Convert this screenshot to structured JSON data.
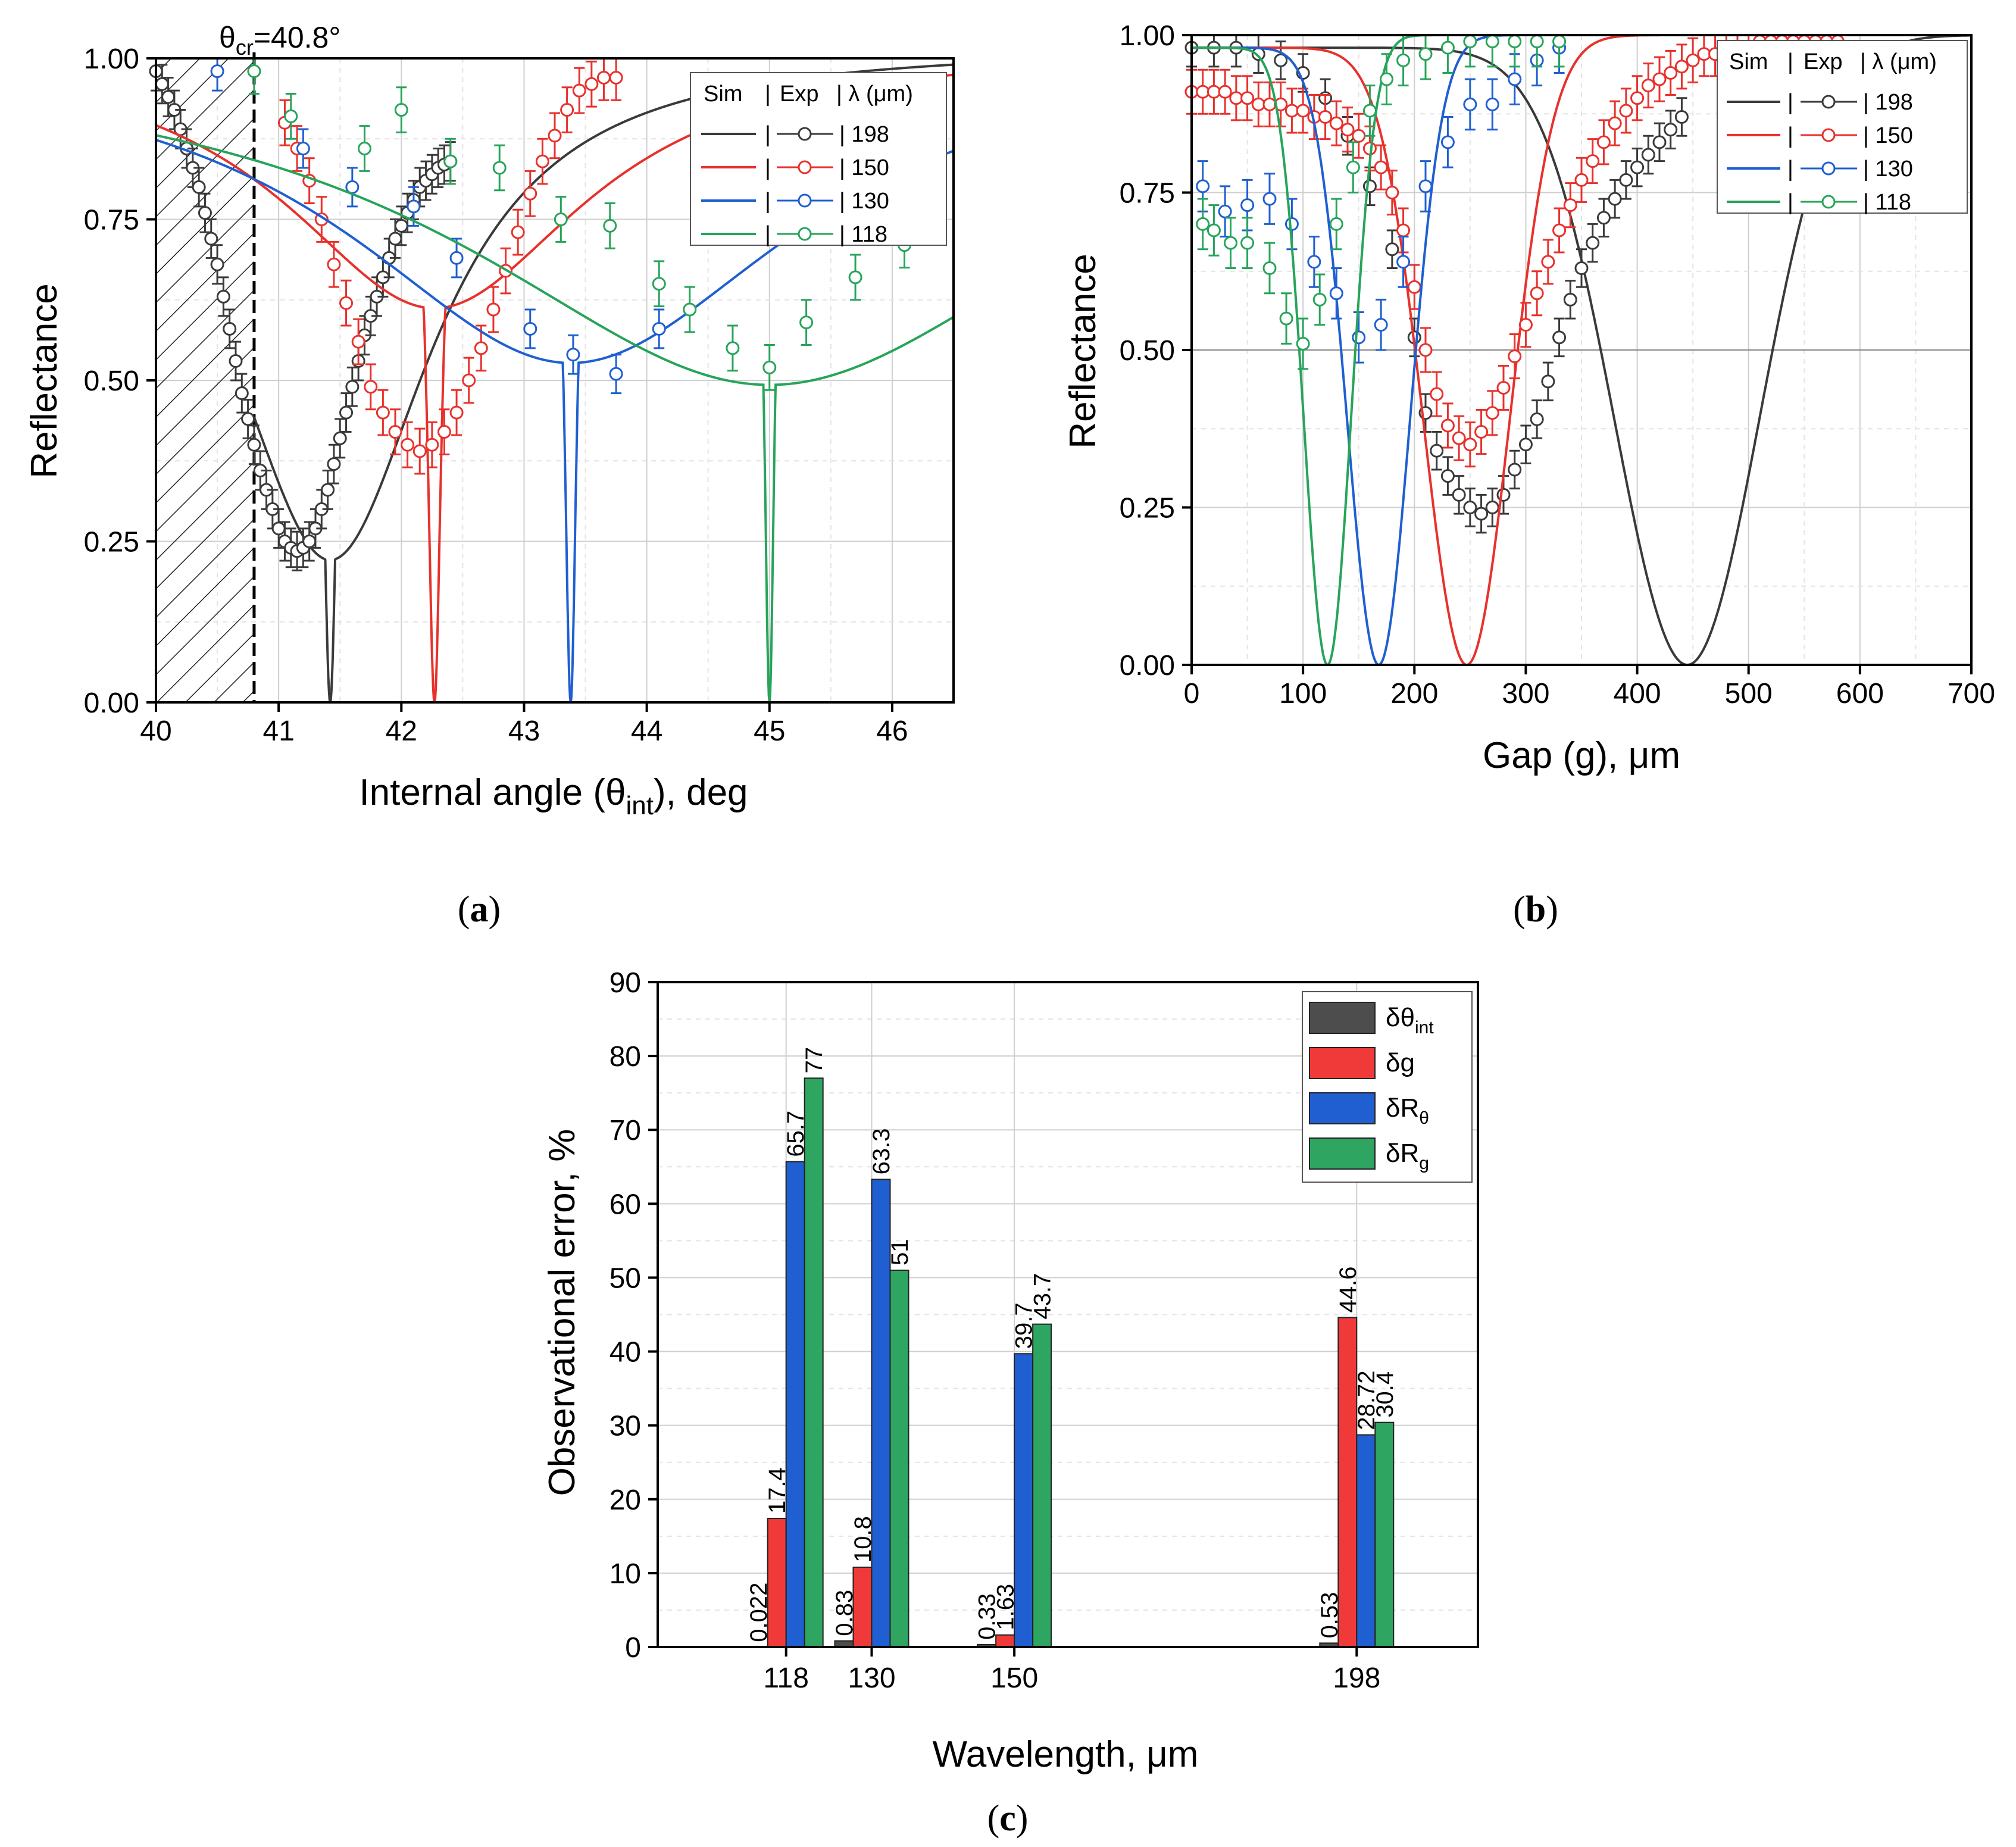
{
  "chart_data": [
    {
      "type": "line",
      "panel_label": "a",
      "xlabel": "Internal angle (θ",
      "xlabel_sub": "int",
      "xlabel_suffix": "), deg",
      "ylabel": "Reflectance",
      "xlim": [
        40,
        46.5
      ],
      "ylim": [
        0,
        1
      ],
      "xticks": [
        "40",
        "41",
        "42",
        "43",
        "44",
        "45",
        "46"
      ],
      "yticks": [
        "0.00",
        "0.25",
        "0.50",
        "0.75",
        "1.00"
      ],
      "annotation": {
        "prefix": "θ",
        "sub": "cr",
        "text": "=40.8°",
        "x": 40.8
      },
      "shaded_region": [
        40,
        40.8
      ],
      "legend": {
        "header": [
          "Sim",
          "|",
          "Exp",
          "| λ (μm)"
        ],
        "placement": "top-right"
      },
      "series": [
        {
          "name": "198",
          "label": "| 198",
          "color": "#3a3a3a",
          "sim": {
            "dip": 41.42,
            "width": 0.075,
            "tail": 0.06,
            "tailw": 1.0
          },
          "exp": {
            "x": [
              40.0,
              40.05,
              40.1,
              40.15,
              40.2,
              40.25,
              40.3,
              40.35,
              40.4,
              40.45,
              40.5,
              40.55,
              40.6,
              40.65,
              40.7,
              40.75,
              40.8,
              40.85,
              40.9,
              40.95,
              41.0,
              41.05,
              41.1,
              41.15,
              41.2,
              41.25,
              41.3,
              41.35,
              41.4,
              41.45,
              41.5,
              41.55,
              41.6,
              41.65,
              41.7,
              41.75,
              41.8,
              41.85,
              41.9,
              41.95,
              42.0,
              42.05,
              42.1,
              42.15,
              42.2,
              42.25,
              42.3,
              42.35,
              42.4
            ],
            "y": [
              0.98,
              0.96,
              0.94,
              0.92,
              0.89,
              0.86,
              0.83,
              0.8,
              0.76,
              0.72,
              0.68,
              0.63,
              0.58,
              0.53,
              0.48,
              0.44,
              0.4,
              0.36,
              0.33,
              0.3,
              0.27,
              0.25,
              0.24,
              0.235,
              0.24,
              0.25,
              0.27,
              0.3,
              0.33,
              0.37,
              0.41,
              0.45,
              0.49,
              0.53,
              0.57,
              0.6,
              0.63,
              0.66,
              0.69,
              0.72,
              0.74,
              0.76,
              0.78,
              0.8,
              0.81,
              0.82,
              0.83,
              0.835,
              0.84
            ],
            "err": 0.03
          }
        },
        {
          "name": "150",
          "label": "| 150",
          "color": "#e8312c",
          "sim": {
            "dip": 42.27,
            "width": 0.07,
            "tail": 0.52,
            "tailw": 1.5
          },
          "exp": {
            "x": [
              41.05,
              41.15,
              41.25,
              41.35,
              41.45,
              41.55,
              41.65,
              41.75,
              41.85,
              41.95,
              42.05,
              42.15,
              42.25,
              42.35,
              42.45,
              42.55,
              42.65,
              42.75,
              42.85,
              42.95,
              43.05,
              43.15,
              43.25,
              43.35,
              43.45,
              43.55,
              43.65,
              43.75
            ],
            "y": [
              0.9,
              0.86,
              0.81,
              0.75,
              0.68,
              0.62,
              0.56,
              0.49,
              0.45,
              0.42,
              0.4,
              0.39,
              0.4,
              0.42,
              0.45,
              0.5,
              0.55,
              0.61,
              0.67,
              0.73,
              0.79,
              0.84,
              0.88,
              0.92,
              0.95,
              0.96,
              0.97,
              0.97
            ],
            "err": 0.035
          }
        },
        {
          "name": "130",
          "label": "| 130",
          "color": "#1f5fd1",
          "sim": {
            "dip": 43.38,
            "width": 0.06,
            "tail": 0.42,
            "tailw": 2.2
          },
          "exp": {
            "x": [
              40.5,
              41.2,
              41.6,
              42.1,
              42.45,
              43.05,
              43.4,
              43.75,
              44.1
            ],
            "y": [
              0.98,
              0.86,
              0.8,
              0.77,
              0.69,
              0.58,
              0.54,
              0.51,
              0.58
            ],
            "err": 0.03
          }
        },
        {
          "name": "118",
          "label": "| 118",
          "color": "#27a45a",
          "sim": {
            "dip": 45.0,
            "width": 0.05,
            "tail": 0.38,
            "tailw": 3.0
          },
          "exp": {
            "x": [
              40.8,
              41.1,
              41.7,
              42.0,
              42.4,
              42.8,
              43.3,
              43.7,
              44.1,
              44.35,
              44.7,
              45.0,
              45.3,
              45.7,
              46.1
            ],
            "y": [
              0.98,
              0.91,
              0.86,
              0.92,
              0.84,
              0.83,
              0.75,
              0.74,
              0.65,
              0.61,
              0.55,
              0.52,
              0.59,
              0.66,
              0.71
            ],
            "err": 0.035
          }
        }
      ]
    },
    {
      "type": "line",
      "panel_label": "b",
      "xlabel": "Gap (g), μm",
      "ylabel": "Reflectance",
      "xlim": [
        0,
        700
      ],
      "ylim": [
        0,
        1
      ],
      "xticks": [
        "0",
        "100",
        "200",
        "300",
        "400",
        "500",
        "600",
        "700"
      ],
      "yticks": [
        "0.00",
        "0.25",
        "0.50",
        "0.75",
        "1.00"
      ],
      "legend": {
        "header": [
          "Sim",
          "|",
          "Exp",
          "| λ (μm)"
        ],
        "placement": "top-right"
      },
      "series": [
        {
          "name": "198",
          "label": "| 198",
          "color": "#3a3a3a",
          "sim": {
            "dip": 445,
            "sigma": 92,
            "y0": 0.98
          },
          "exp": {
            "x": [
              0,
              20,
              40,
              60,
              80,
              100,
              120,
              140,
              160,
              180,
              200,
              210,
              220,
              230,
              240,
              250,
              260,
              270,
              280,
              290,
              300,
              310,
              320,
              330,
              340,
              350,
              360,
              370,
              380,
              390,
              400,
              410,
              420,
              430,
              440
            ],
            "y": [
              0.98,
              0.98,
              0.98,
              0.97,
              0.96,
              0.94,
              0.9,
              0.84,
              0.76,
              0.66,
              0.52,
              0.4,
              0.34,
              0.3,
              0.27,
              0.25,
              0.24,
              0.25,
              0.27,
              0.31,
              0.35,
              0.39,
              0.45,
              0.52,
              0.58,
              0.63,
              0.67,
              0.71,
              0.74,
              0.77,
              0.79,
              0.81,
              0.83,
              0.85,
              0.87
            ],
            "err": 0.03
          }
        },
        {
          "name": "150",
          "label": "| 150",
          "color": "#e8312c",
          "sim": {
            "dip": 247,
            "sigma": 55,
            "y0": 0.98
          },
          "exp": {
            "x": [
              0,
              10,
              20,
              30,
              40,
              50,
              60,
              70,
              80,
              90,
              100,
              110,
              120,
              130,
              140,
              150,
              160,
              170,
              180,
              190,
              200,
              210,
              220,
              230,
              240,
              250,
              260,
              270,
              280,
              290,
              300,
              310,
              320,
              330,
              340,
              350,
              360,
              370,
              380,
              390,
              400,
              410,
              420,
              430,
              440,
              450,
              460,
              470,
              480,
              490,
              500,
              510,
              520,
              530,
              540,
              550,
              560,
              570,
              580
            ],
            "y": [
              0.91,
              0.91,
              0.91,
              0.91,
              0.9,
              0.9,
              0.89,
              0.89,
              0.89,
              0.88,
              0.88,
              0.87,
              0.87,
              0.86,
              0.85,
              0.84,
              0.82,
              0.79,
              0.75,
              0.69,
              0.6,
              0.5,
              0.43,
              0.38,
              0.36,
              0.35,
              0.37,
              0.4,
              0.44,
              0.49,
              0.54,
              0.59,
              0.64,
              0.69,
              0.73,
              0.77,
              0.8,
              0.83,
              0.86,
              0.88,
              0.9,
              0.92,
              0.93,
              0.94,
              0.95,
              0.96,
              0.97,
              0.97,
              0.98,
              0.98,
              0.98,
              0.99,
              0.99,
              0.99,
              0.99,
              0.99,
              0.99,
              0.99,
              0.99
            ],
            "err": 0.035
          }
        },
        {
          "name": "130",
          "label": "| 130",
          "color": "#1f5fd1",
          "sim": {
            "dip": 168,
            "sigma": 40,
            "y0": 0.98
          },
          "exp": {
            "x": [
              10,
              30,
              50,
              70,
              90,
              110,
              130,
              150,
              170,
              190,
              210,
              230,
              250,
              270,
              290,
              310,
              330
            ],
            "y": [
              0.76,
              0.72,
              0.73,
              0.74,
              0.7,
              0.64,
              0.59,
              0.52,
              0.54,
              0.64,
              0.76,
              0.83,
              0.89,
              0.89,
              0.93,
              0.96,
              0.98
            ],
            "err": 0.04
          }
        },
        {
          "name": "118",
          "label": "| 118",
          "color": "#27a45a",
          "sim": {
            "dip": 122,
            "sigma": 30,
            "y0": 0.98
          },
          "exp": {
            "x": [
              10,
              20,
              35,
              50,
              70,
              85,
              100,
              115,
              130,
              145,
              160,
              175,
              190,
              210,
              230,
              250,
              270,
              290,
              310,
              330
            ],
            "y": [
              0.7,
              0.69,
              0.67,
              0.67,
              0.63,
              0.55,
              0.51,
              0.58,
              0.7,
              0.79,
              0.88,
              0.93,
              0.96,
              0.97,
              0.98,
              0.99,
              0.99,
              0.99,
              0.99,
              0.99
            ],
            "err": 0.04
          }
        }
      ]
    },
    {
      "type": "bar",
      "panel_label": "c",
      "xlabel": "Wavelength, μm",
      "ylabel": "Observational error, %",
      "ylim": [
        0,
        90
      ],
      "xlim": [
        100,
        215
      ],
      "yticks": [
        "0",
        "10",
        "20",
        "30",
        "40",
        "50",
        "60",
        "70",
        "80",
        "90"
      ],
      "x": [
        118,
        130,
        150,
        198
      ],
      "categories": [
        "118",
        "130",
        "150",
        "198"
      ],
      "series": [
        {
          "name": "δθ",
          "sub": "int",
          "color": "#4d4d4d",
          "values": [
            0.022,
            0.83,
            0.33,
            0.53
          ],
          "labels": [
            "0.022",
            "0.83",
            "0.33",
            "0.53"
          ]
        },
        {
          "name": "δg",
          "sub": "",
          "color": "#f03a3a",
          "values": [
            17.4,
            10.8,
            1.63,
            44.6
          ],
          "labels": [
            "17.4",
            "10.8",
            "1.63",
            "44.6"
          ]
        },
        {
          "name": "δR",
          "sub": "θ",
          "color": "#1f5fd1",
          "values": [
            65.7,
            63.3,
            39.7,
            28.72
          ],
          "labels": [
            "65.7",
            "63.3",
            "39.7",
            "28.72"
          ]
        },
        {
          "name": "δR",
          "sub": "g",
          "color": "#2ea561",
          "values": [
            77,
            51,
            43.7,
            30.4
          ],
          "labels": [
            "77",
            "51",
            "43.7",
            "30.4"
          ]
        }
      ]
    }
  ]
}
